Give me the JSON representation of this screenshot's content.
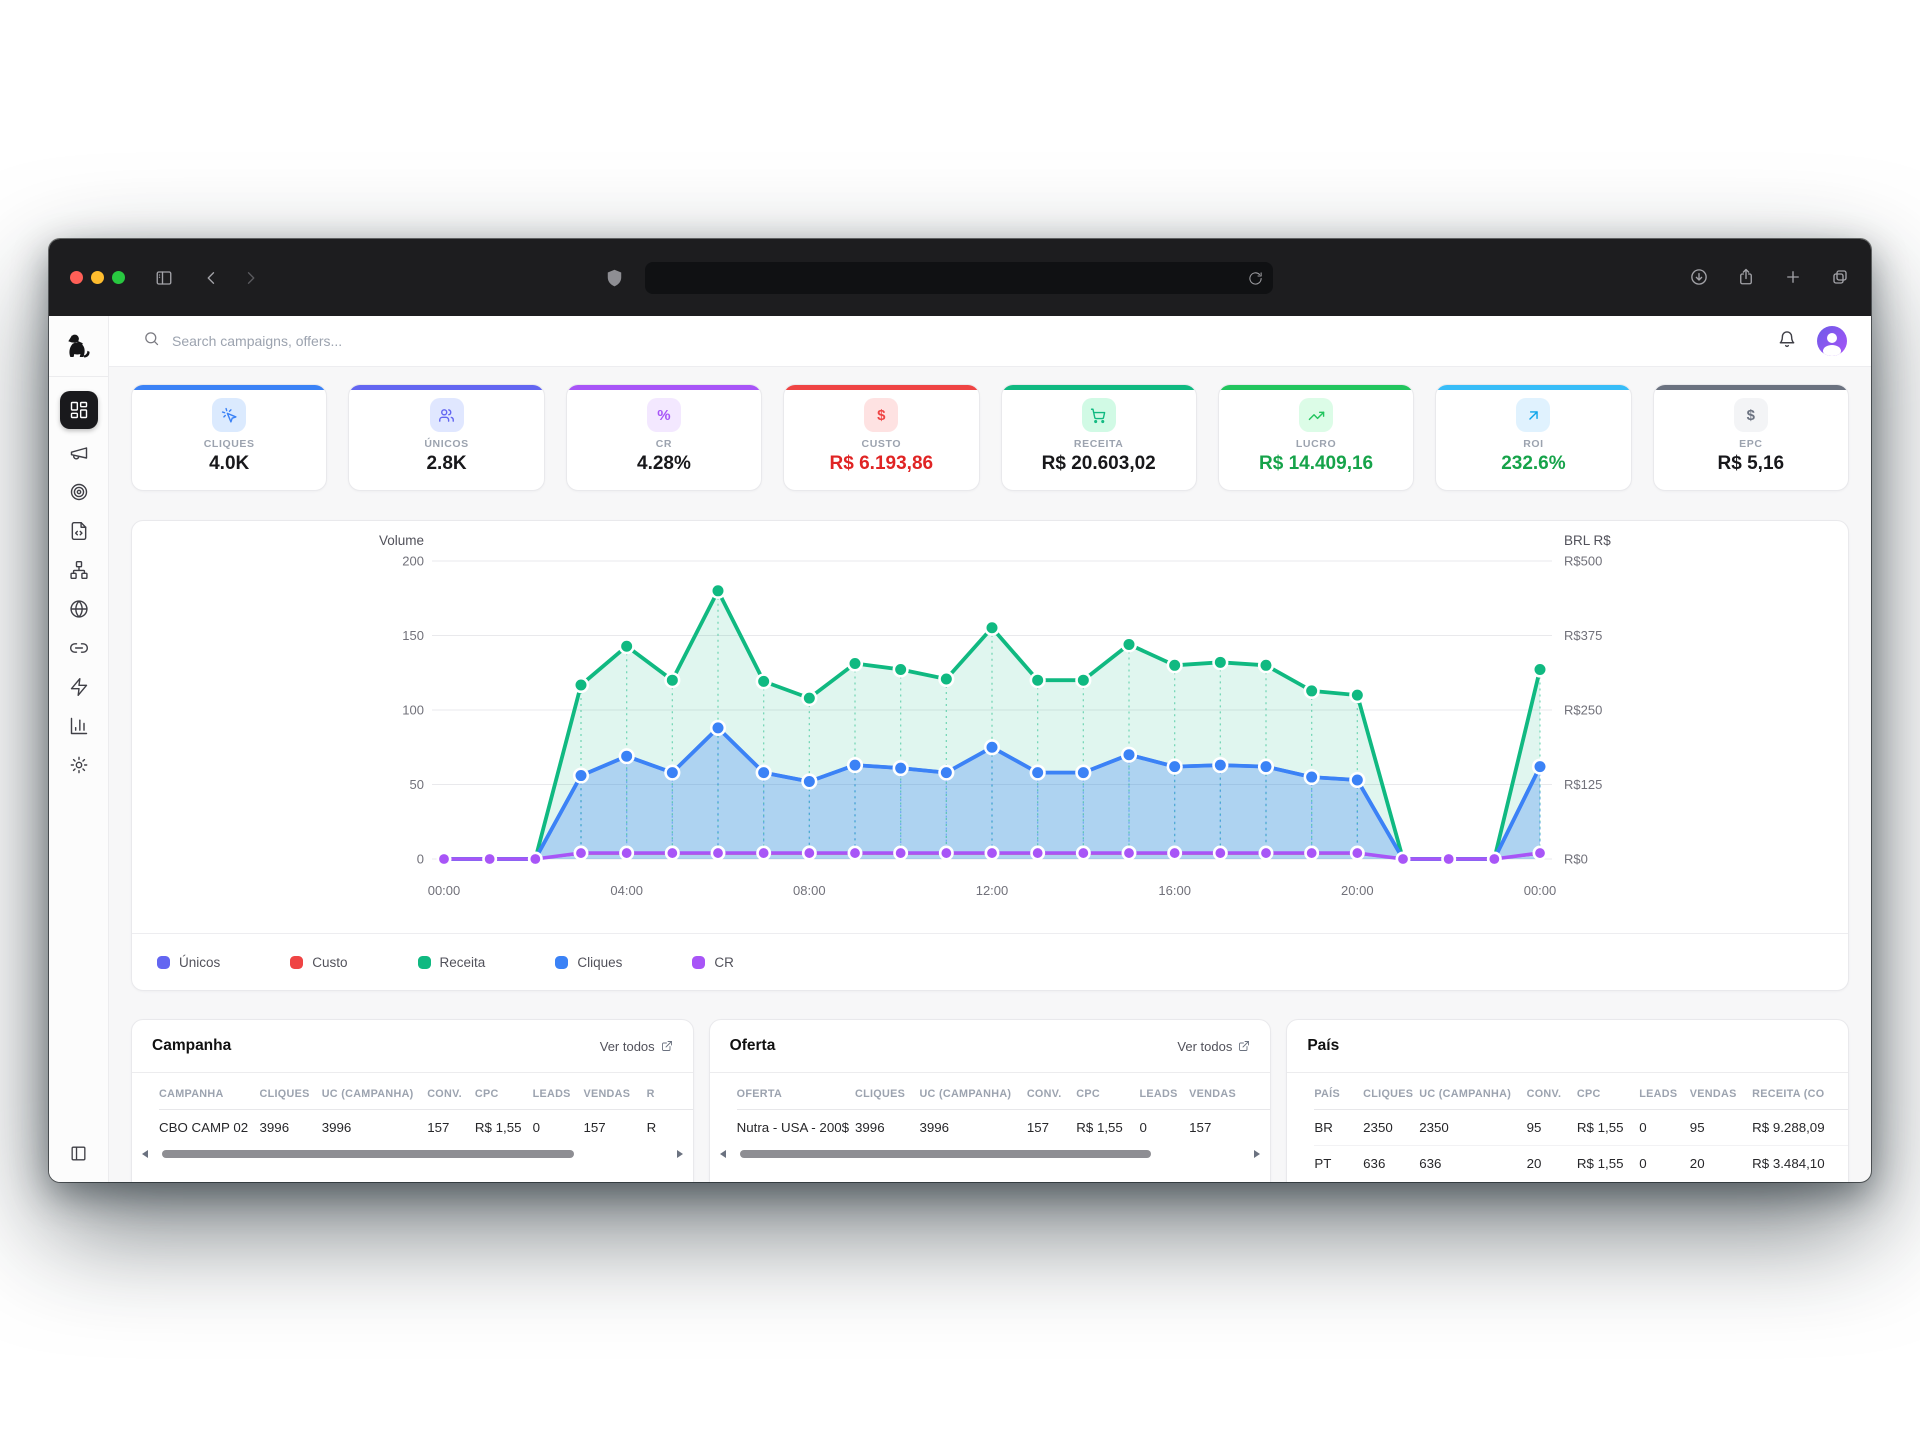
{
  "browser": {
    "address_url": ""
  },
  "header": {
    "search_placeholder": "Search campaigns, offers..."
  },
  "sidebar": {
    "items": [
      {
        "name": "dashboard",
        "active": true
      },
      {
        "name": "campaigns",
        "active": false
      },
      {
        "name": "offers",
        "active": false
      },
      {
        "name": "landing-pages",
        "active": false
      },
      {
        "name": "funnels",
        "active": false
      },
      {
        "name": "domains",
        "active": false
      },
      {
        "name": "links",
        "active": false
      },
      {
        "name": "automation",
        "active": false
      },
      {
        "name": "reports",
        "active": false
      },
      {
        "name": "settings",
        "active": false
      }
    ]
  },
  "kpis": [
    {
      "label": "CLIQUES",
      "value": "4.0K",
      "accent": "#3b82f6",
      "icon": "click-icon",
      "icon_bg": "#dbeafe",
      "icon_color": "#3b82f6",
      "value_color": "#18181b"
    },
    {
      "label": "ÚNICOS",
      "value": "2.8K",
      "accent": "#6366f1",
      "icon": "users-icon",
      "icon_bg": "#e0e7ff",
      "icon_color": "#6366f1",
      "value_color": "#18181b"
    },
    {
      "label": "CR",
      "value": "4.28%",
      "accent": "#a855f7",
      "icon": "percent-icon",
      "icon_bg": "#f3e8ff",
      "icon_color": "#a855f7",
      "value_color": "#18181b"
    },
    {
      "label": "CUSTO",
      "value": "R$ 6.193,86",
      "accent": "#ef4444",
      "icon": "dollar-icon",
      "icon_bg": "#fee2e2",
      "icon_color": "#ef4444",
      "value_color": "#e02424"
    },
    {
      "label": "RECEITA",
      "value": "R$ 20.603,02",
      "accent": "#10b981",
      "icon": "cart-icon",
      "icon_bg": "#d1fae5",
      "icon_color": "#10b981",
      "value_color": "#18181b"
    },
    {
      "label": "LUCRO",
      "value": "R$ 14.409,16",
      "accent": "#22c55e",
      "icon": "trend-up-icon",
      "icon_bg": "#dcfce7",
      "icon_color": "#22c55e",
      "value_color": "#16a34a"
    },
    {
      "label": "ROI",
      "value": "232.6%",
      "accent": "#38bdf8",
      "icon": "arrow-up-right-icon",
      "icon_bg": "#e0f2fe",
      "icon_color": "#0ea5e9",
      "value_color": "#16a34a"
    },
    {
      "label": "EPC",
      "value": "R$ 5,16",
      "accent": "#6b7280",
      "icon": "dollar-icon",
      "icon_bg": "#f3f4f6",
      "icon_color": "#6b7280",
      "value_color": "#18181b"
    }
  ],
  "chart_data": {
    "type": "line",
    "x": [
      "00:00",
      "01:00",
      "02:00",
      "03:00",
      "04:00",
      "05:00",
      "06:00",
      "07:00",
      "08:00",
      "09:00",
      "10:00",
      "11:00",
      "12:00",
      "13:00",
      "14:00",
      "15:00",
      "16:00",
      "17:00",
      "18:00",
      "19:00",
      "20:00",
      "21:00",
      "22:00",
      "23:00",
      "00:00"
    ],
    "x_tick_labels": [
      "00:00",
      "04:00",
      "08:00",
      "12:00",
      "16:00",
      "20:00",
      "00:00"
    ],
    "left_axis": {
      "title": "Volume",
      "ticks": [
        0,
        50,
        100,
        150,
        200
      ],
      "range": [
        0,
        200
      ]
    },
    "right_axis": {
      "title": "BRL R$",
      "ticks": [
        0,
        125,
        250,
        375,
        500
      ],
      "tick_prefix": "R$",
      "range": [
        0,
        500
      ]
    },
    "grid": true,
    "legend_position": "bottom-left",
    "series": [
      {
        "name": "Únicos",
        "color": "#6366f1",
        "axis": "left",
        "fill": false,
        "values": [
          0,
          0,
          0,
          56,
          69,
          58,
          88,
          58,
          52,
          63,
          61,
          58,
          75,
          58,
          58,
          70,
          62,
          63,
          62,
          55,
          53,
          0,
          0,
          0,
          62
        ]
      },
      {
        "name": "Custo",
        "color": "#ef4444",
        "axis": "right",
        "fill": false,
        "values": [
          0,
          0,
          0,
          9,
          9,
          9,
          9,
          9,
          9,
          9,
          9,
          9,
          9,
          9,
          9,
          9,
          9,
          9,
          9,
          9,
          9,
          0,
          0,
          0,
          9
        ]
      },
      {
        "name": "Receita",
        "color": "#10b981",
        "axis": "right",
        "fill": true,
        "values": [
          0,
          0,
          0,
          292,
          357,
          300,
          450,
          298,
          270,
          328,
          318,
          302,
          388,
          300,
          300,
          360,
          325,
          330,
          325,
          282,
          275,
          0,
          0,
          0,
          318
        ]
      },
      {
        "name": "Cliques",
        "color": "#3b82f6",
        "axis": "left",
        "fill": true,
        "values": [
          0,
          0,
          0,
          56,
          69,
          58,
          88,
          58,
          52,
          63,
          61,
          58,
          75,
          58,
          58,
          70,
          62,
          63,
          62,
          55,
          53,
          0,
          0,
          0,
          62
        ]
      },
      {
        "name": "CR",
        "color": "#a855f7",
        "axis": "left",
        "fill": false,
        "values": [
          0,
          0,
          0,
          4,
          4,
          4,
          4,
          4,
          4,
          4,
          4,
          4,
          4,
          4,
          4,
          4,
          4,
          4,
          4,
          4,
          4,
          0,
          0,
          0,
          4
        ]
      }
    ]
  },
  "tables": [
    {
      "title": "Campanha",
      "link": "Ver todos",
      "scrollbar": true,
      "columns": [
        "CAMPANHA",
        "CLIQUES",
        "UC (CAMPANHA)",
        "CONV.",
        "CPC",
        "LEADS",
        "VENDAS",
        "R"
      ],
      "rows": [
        [
          "CBO CAMP 02",
          "3996",
          "3996",
          "157",
          "R$ 1,55",
          "0",
          "157",
          "R"
        ]
      ]
    },
    {
      "title": "Oferta",
      "link": "Ver todos",
      "scrollbar": true,
      "columns": [
        "OFERTA",
        "CLIQUES",
        "UC (CAMPANHA)",
        "CONV.",
        "CPC",
        "LEADS",
        "VENDAS"
      ],
      "rows": [
        [
          "Nutra - USA - 200$",
          "3996",
          "3996",
          "157",
          "R$ 1,55",
          "0",
          "157"
        ]
      ]
    },
    {
      "title": "País",
      "link": "",
      "scrollbar": false,
      "columns": [
        "PAÍS",
        "CLIQUES",
        "UC (CAMPANHA)",
        "CONV.",
        "CPC",
        "LEADS",
        "VENDAS",
        "RECEITA (CO"
      ],
      "rows": [
        [
          "BR",
          "2350",
          "2350",
          "95",
          "R$ 1,55",
          "0",
          "95",
          "R$ 9.288,09"
        ],
        [
          "PT",
          "636",
          "636",
          "20",
          "R$ 1,55",
          "0",
          "20",
          "R$ 3.484,10"
        ]
      ]
    }
  ]
}
